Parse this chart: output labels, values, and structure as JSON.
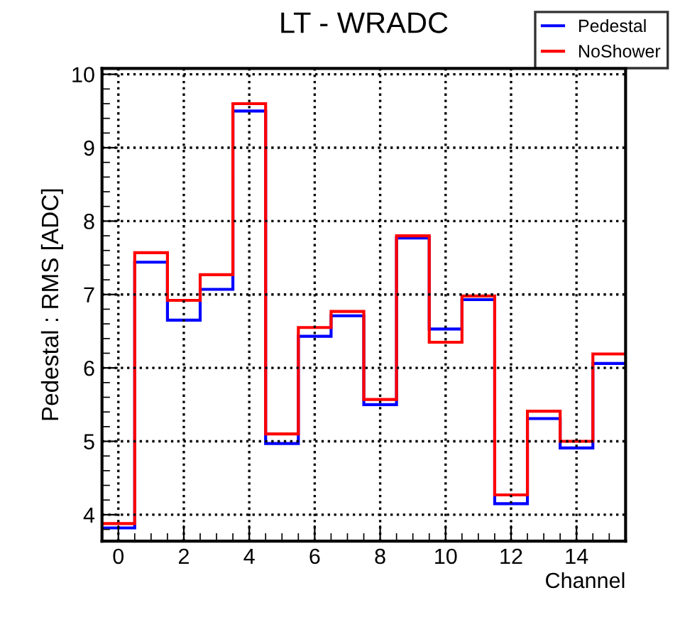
{
  "chart_data": {
    "type": "histogram",
    "title": "LT - WRADC",
    "xlabel": "Channel",
    "ylabel": "Pedestal : RMS [ADC]",
    "bins": [
      -0.5,
      0.5,
      1.5,
      2.5,
      3.5,
      4.5,
      5.5,
      6.5,
      7.5,
      8.5,
      9.5,
      10.5,
      11.5,
      12.5,
      13.5,
      14.5,
      15.5
    ],
    "series": [
      {
        "name": "Pedestal",
        "color": "#0000ff",
        "values": [
          3.82,
          7.44,
          6.65,
          7.07,
          9.5,
          4.97,
          6.43,
          6.71,
          5.5,
          7.77,
          6.53,
          6.93,
          4.15,
          5.31,
          4.91,
          6.06
        ]
      },
      {
        "name": "NoShower",
        "color": "#ff0000",
        "values": [
          3.88,
          7.57,
          6.92,
          7.27,
          9.6,
          5.1,
          6.55,
          6.77,
          5.57,
          7.8,
          6.35,
          6.98,
          4.27,
          5.41,
          5.0,
          6.19
        ]
      }
    ],
    "xlim": [
      -0.5,
      15.5
    ],
    "xticks": [
      0,
      2,
      4,
      6,
      8,
      10,
      12,
      14
    ],
    "ylim": [
      3.64,
      10.08
    ],
    "yticks": [
      4,
      5,
      6,
      7,
      8,
      9,
      10
    ],
    "grid": true,
    "line_style": "dotted",
    "legend": "top right"
  }
}
